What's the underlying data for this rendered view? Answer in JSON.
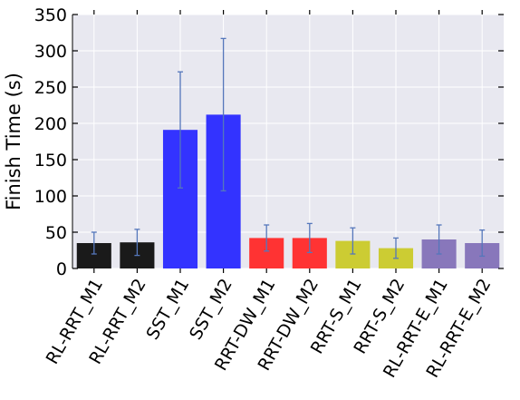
{
  "chart_data": {
    "type": "bar",
    "title": "",
    "xlabel": "",
    "ylabel": "Finish Time (s)",
    "ylim": [
      0,
      350
    ],
    "yticks": [
      0,
      50,
      100,
      150,
      200,
      250,
      300,
      350
    ],
    "grid": true,
    "categories": [
      "RL-RRT_M1",
      "RL-RRT_M2",
      "SST_M1",
      "SST_M2",
      "RRT-DW_M1",
      "RRT-DW_M2",
      "RRT-S_M1",
      "RRT-S_M2",
      "RL-RRT-E_M1",
      "RL-RRT-E_M2"
    ],
    "values": [
      35,
      36,
      191,
      212,
      42,
      42,
      38,
      28,
      40,
      35
    ],
    "error": [
      15,
      18,
      80,
      105,
      18,
      20,
      18,
      14,
      20,
      18
    ],
    "colors": [
      "#1a1a1a",
      "#1a1a1a",
      "#3333ff",
      "#3333ff",
      "#ff3333",
      "#ff3333",
      "#cccc33",
      "#cccc33",
      "#8877bb",
      "#8877bb"
    ],
    "error_color": "#5577bb",
    "background_color": "#e8e8f0"
  }
}
